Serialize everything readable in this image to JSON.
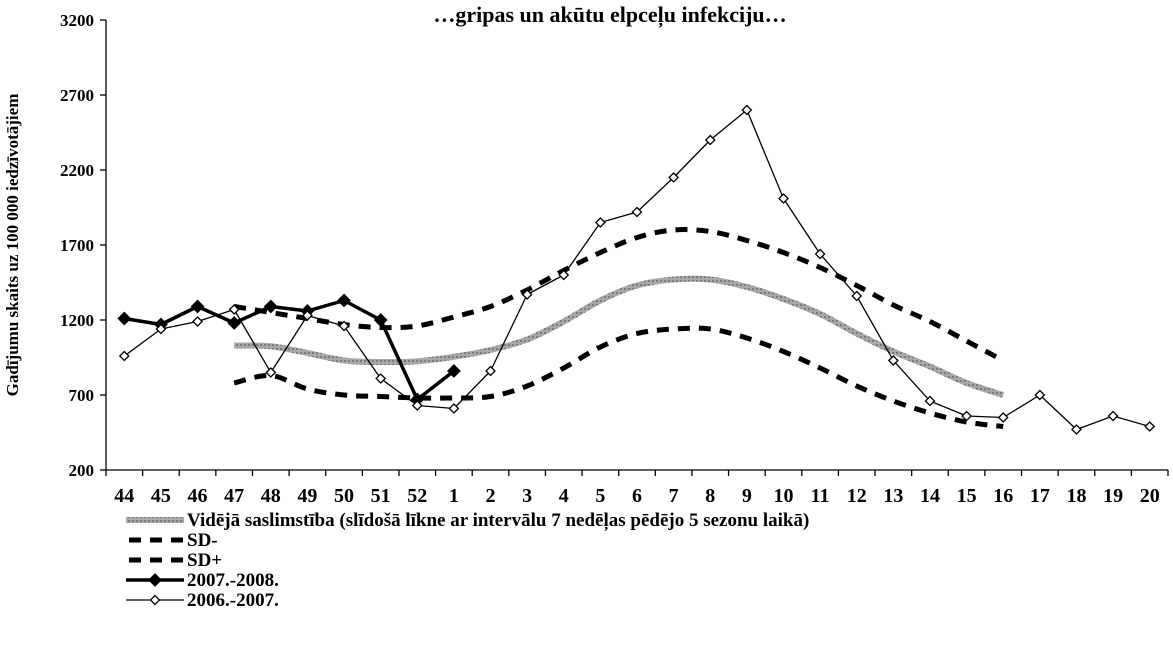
{
  "chart_data": {
    "type": "line",
    "title": "…gripas un akūtu elpceļu infekciju…",
    "ylabel": "Gadījumu skaits uz 100 000 iedzīvotājiem",
    "xlabel": "",
    "ylim": [
      200,
      3200
    ],
    "yticks": [
      "200",
      "700",
      "1200",
      "1700",
      "2200",
      "2700",
      "3200"
    ],
    "categories": [
      "44",
      "45",
      "46",
      "47",
      "48",
      "49",
      "50",
      "51",
      "52",
      "1",
      "2",
      "3",
      "4",
      "5",
      "6",
      "7",
      "8",
      "9",
      "10",
      "11",
      "12",
      "13",
      "14",
      "15",
      "16",
      "17",
      "18",
      "19",
      "20"
    ],
    "grid": false,
    "legend_position": "bottom-left",
    "series": [
      {
        "name": "Vidējā saslimstība (slīdošā līkne ar intervālu 7 nedēļas pēdējo 5 sezonu laikā)",
        "style": "thick-gray-textured",
        "color": "#9a9a9a",
        "values": [
          null,
          null,
          null,
          1030,
          1025,
          980,
          930,
          920,
          925,
          955,
          1000,
          1070,
          1190,
          1330,
          1430,
          1470,
          1470,
          1420,
          1340,
          1240,
          1110,
          990,
          890,
          780,
          700,
          null,
          null,
          null,
          null
        ]
      },
      {
        "name": "SD-",
        "style": "dashed",
        "color": "#000000",
        "values": [
          null,
          null,
          null,
          780,
          830,
          740,
          700,
          690,
          680,
          680,
          690,
          760,
          880,
          1020,
          1110,
          1140,
          1140,
          1080,
          990,
          880,
          760,
          660,
          580,
          520,
          490,
          null,
          null,
          null,
          null
        ]
      },
      {
        "name": "SD+",
        "style": "dashed",
        "color": "#000000",
        "values": [
          null,
          null,
          null,
          1290,
          1250,
          1210,
          1170,
          1150,
          1160,
          1220,
          1290,
          1400,
          1530,
          1650,
          1750,
          1800,
          1790,
          1730,
          1650,
          1550,
          1430,
          1300,
          1190,
          1060,
          930,
          null,
          null,
          null,
          null
        ]
      },
      {
        "name": "2007.-2008.",
        "style": "thick-solid-filled-diamond",
        "color": "#000000",
        "values": [
          1210,
          1170,
          1290,
          1180,
          1290,
          1260,
          1330,
          1200,
          670,
          860,
          null,
          null,
          null,
          null,
          null,
          null,
          null,
          null,
          null,
          null,
          null,
          null,
          null,
          null,
          null,
          null,
          null,
          null,
          null
        ]
      },
      {
        "name": "2006.-2007.",
        "style": "thin-solid-open-diamond",
        "color": "#000000",
        "values": [
          960,
          1140,
          1190,
          1270,
          850,
          1230,
          1160,
          810,
          630,
          610,
          860,
          1370,
          1500,
          1850,
          1920,
          2150,
          2400,
          2600,
          2010,
          1640,
          1360,
          930,
          660,
          560,
          550,
          700,
          470,
          560,
          490
        ]
      }
    ]
  }
}
